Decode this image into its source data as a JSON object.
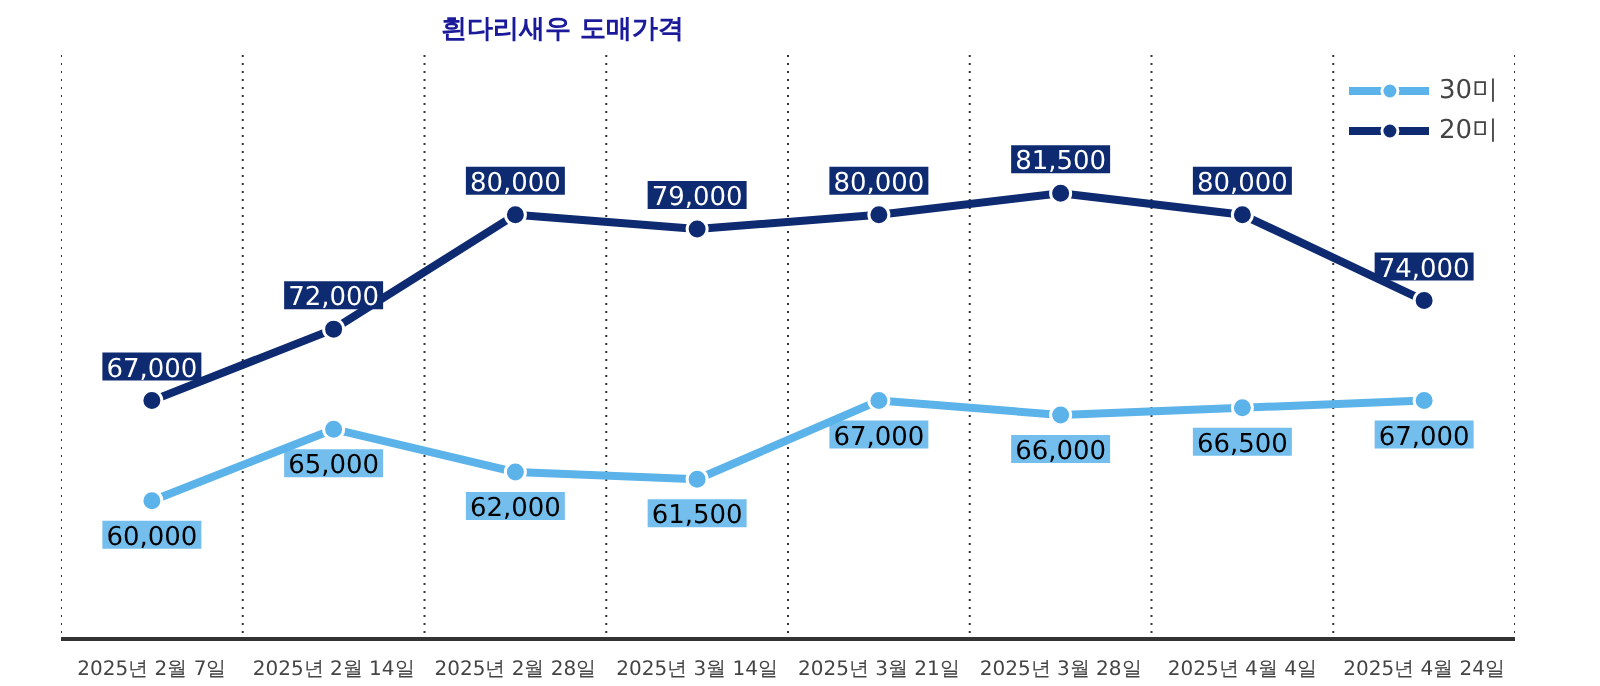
{
  "chart_data": {
    "type": "line",
    "title": "흰다리새우 도매가격",
    "categories": [
      "2025년 2월 7일",
      "2025년 2월 14일",
      "2025년 2월 28일",
      "2025년 3월 14일",
      "2025년 3월 21일",
      "2025년 3월 28일",
      "2025년 4월 4일",
      "2025년 4월 24일"
    ],
    "series": [
      {
        "name": "30미",
        "color": "#5cb3ea",
        "values": [
          60000,
          65000,
          62000,
          61500,
          67000,
          66000,
          66500,
          67000
        ],
        "value_labels": [
          "60,000",
          "65,000",
          "62,000",
          "61,500",
          "67,000",
          "66,000",
          "66,500",
          "67,000"
        ]
      },
      {
        "name": "20미",
        "color": "#0e2a70",
        "values": [
          67000,
          72000,
          80000,
          79000,
          80000,
          81500,
          80000,
          74000
        ],
        "value_labels": [
          "67,000",
          "72,000",
          "80,000",
          "79,000",
          "80,000",
          "81,500",
          "80,000",
          "74,000"
        ]
      }
    ],
    "tick_labels": "x",
    "grid": "x",
    "legend": "top right",
    "marker": "circle"
  }
}
